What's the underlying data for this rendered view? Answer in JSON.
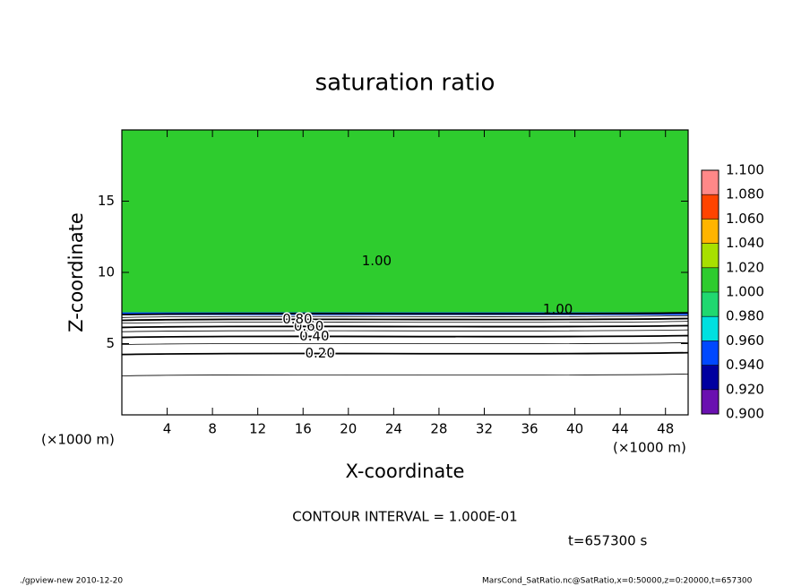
{
  "chart_data": {
    "type": "contour",
    "title": "saturation ratio",
    "x_label": "X-coordinate",
    "y_label": "Z-coordinate",
    "x_unit_labels": [
      "(×1000 m)",
      "(×1000 m)"
    ],
    "xlim": [
      0,
      50
    ],
    "ylim": [
      0,
      20
    ],
    "xticks": [
      4,
      8,
      12,
      16,
      20,
      24,
      28,
      32,
      36,
      40,
      44,
      48
    ],
    "yticks": [
      5,
      10,
      15
    ],
    "clim": [
      0.9,
      1.1
    ],
    "colorbar_ticks": [
      {
        "value": 0.9,
        "label": "0.900"
      },
      {
        "value": 0.92,
        "label": "0.920"
      },
      {
        "value": 0.94,
        "label": "0.940"
      },
      {
        "value": 0.96,
        "label": "0.960"
      },
      {
        "value": 0.98,
        "label": "0.980"
      },
      {
        "value": 1.0,
        "label": "1.000"
      },
      {
        "value": 1.02,
        "label": "1.020"
      },
      {
        "value": 1.04,
        "label": "1.040"
      },
      {
        "value": 1.06,
        "label": "1.060"
      },
      {
        "value": 1.08,
        "label": "1.080"
      },
      {
        "value": 1.1,
        "label": "1.100"
      }
    ],
    "colors": [
      "#6a10b0",
      "#0000a0",
      "#0048ff",
      "#00e0e0",
      "#20d870",
      "#2ecc2e",
      "#a8e000",
      "#ffb400",
      "#ff4400",
      "#ff8888"
    ],
    "contours": [
      {
        "level": 0.1,
        "z": 2.8
      },
      {
        "level": 0.2,
        "z": 4.3
      },
      {
        "level": 0.3,
        "z": 5.0
      },
      {
        "level": 0.4,
        "z": 5.5
      },
      {
        "level": 0.5,
        "z": 5.9
      },
      {
        "level": 0.6,
        "z": 6.2
      },
      {
        "level": 0.7,
        "z": 6.5
      },
      {
        "level": 0.8,
        "z": 6.7
      },
      {
        "level": 0.9,
        "z": 6.9
      },
      {
        "level": 1.0,
        "z": 7.1
      }
    ],
    "contour_labels": [
      {
        "text": "0.20",
        "x": 17.5,
        "z": 4.3
      },
      {
        "text": "0.40",
        "x": 17.0,
        "z": 5.5
      },
      {
        "text": "0.60",
        "x": 16.5,
        "z": 6.2
      },
      {
        "text": "0.80",
        "x": 15.5,
        "z": 6.7
      },
      {
        "text": "1.00",
        "x": 22.5,
        "z": 10.8
      },
      {
        "text": "1.00",
        "x": 38.5,
        "z": 7.4
      }
    ],
    "contour_interval": "CONTOUR INTERVAL = 1.000E-01",
    "time_label": "t=657300 s",
    "footer_left": "./gpview-new   2010-12-20",
    "footer_right": "MarsCond_SatRatio.nc@SatRatio,x=0:50000,z=0:20000,t=657300"
  }
}
